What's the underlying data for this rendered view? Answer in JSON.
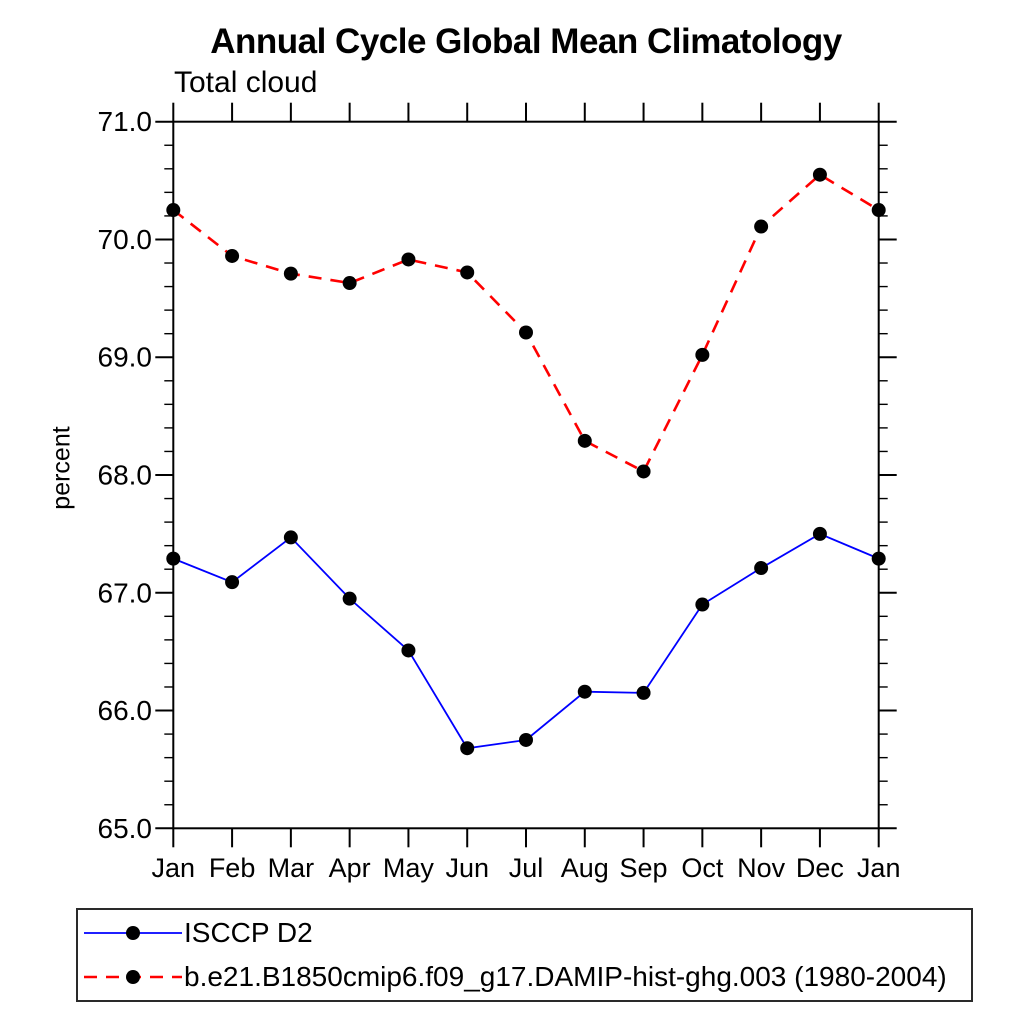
{
  "title": "Annual Cycle Global Mean Climatology",
  "subtitle": "Total cloud",
  "ylabel": "percent",
  "colors": {
    "series1": "#0000ff",
    "series2": "#ff0000",
    "marker": "#000000",
    "axis": "#000000"
  },
  "legend": {
    "items": [
      {
        "label": "ISCCP D2",
        "color": "#0000ff",
        "style": "solid"
      },
      {
        "label": "b.e21.B1850cmip6.f09_g17.DAMIP-hist-ghg.003 (1980-2004)",
        "color": "#ff0000",
        "style": "dashed"
      }
    ]
  },
  "chart_data": {
    "type": "line",
    "title": "Annual Cycle Global Mean Climatology",
    "subtitle": "Total cloud",
    "xlabel": "",
    "ylabel": "percent",
    "categories": [
      "Jan",
      "Feb",
      "Mar",
      "Apr",
      "May",
      "Jun",
      "Jul",
      "Aug",
      "Sep",
      "Oct",
      "Nov",
      "Dec",
      "Jan"
    ],
    "ylim": [
      65.0,
      71.0
    ],
    "ytick_interval": 1.0,
    "yminor_interval": 0.2,
    "ytick_labels": [
      "65.0",
      "66.0",
      "67.0",
      "68.0",
      "69.0",
      "70.0",
      "71.0"
    ],
    "grid": false,
    "legend_position": "bottom-left-box",
    "marker": {
      "shape": "circle",
      "color": "#000000",
      "radius": 7
    },
    "series": [
      {
        "name": "ISCCP D2",
        "color": "#0000ff",
        "line_style": "solid",
        "values": [
          67.29,
          67.09,
          67.47,
          66.95,
          66.51,
          65.68,
          65.75,
          66.16,
          66.15,
          66.9,
          67.21,
          67.5,
          67.29
        ]
      },
      {
        "name": "b.e21.B1850cmip6.f09_g17.DAMIP-hist-ghg.003 (1980-2004)",
        "color": "#ff0000",
        "line_style": "dashed",
        "values": [
          70.25,
          69.86,
          69.71,
          69.63,
          69.83,
          69.72,
          69.21,
          68.29,
          68.03,
          69.02,
          70.11,
          70.55,
          70.25
        ]
      }
    ]
  }
}
